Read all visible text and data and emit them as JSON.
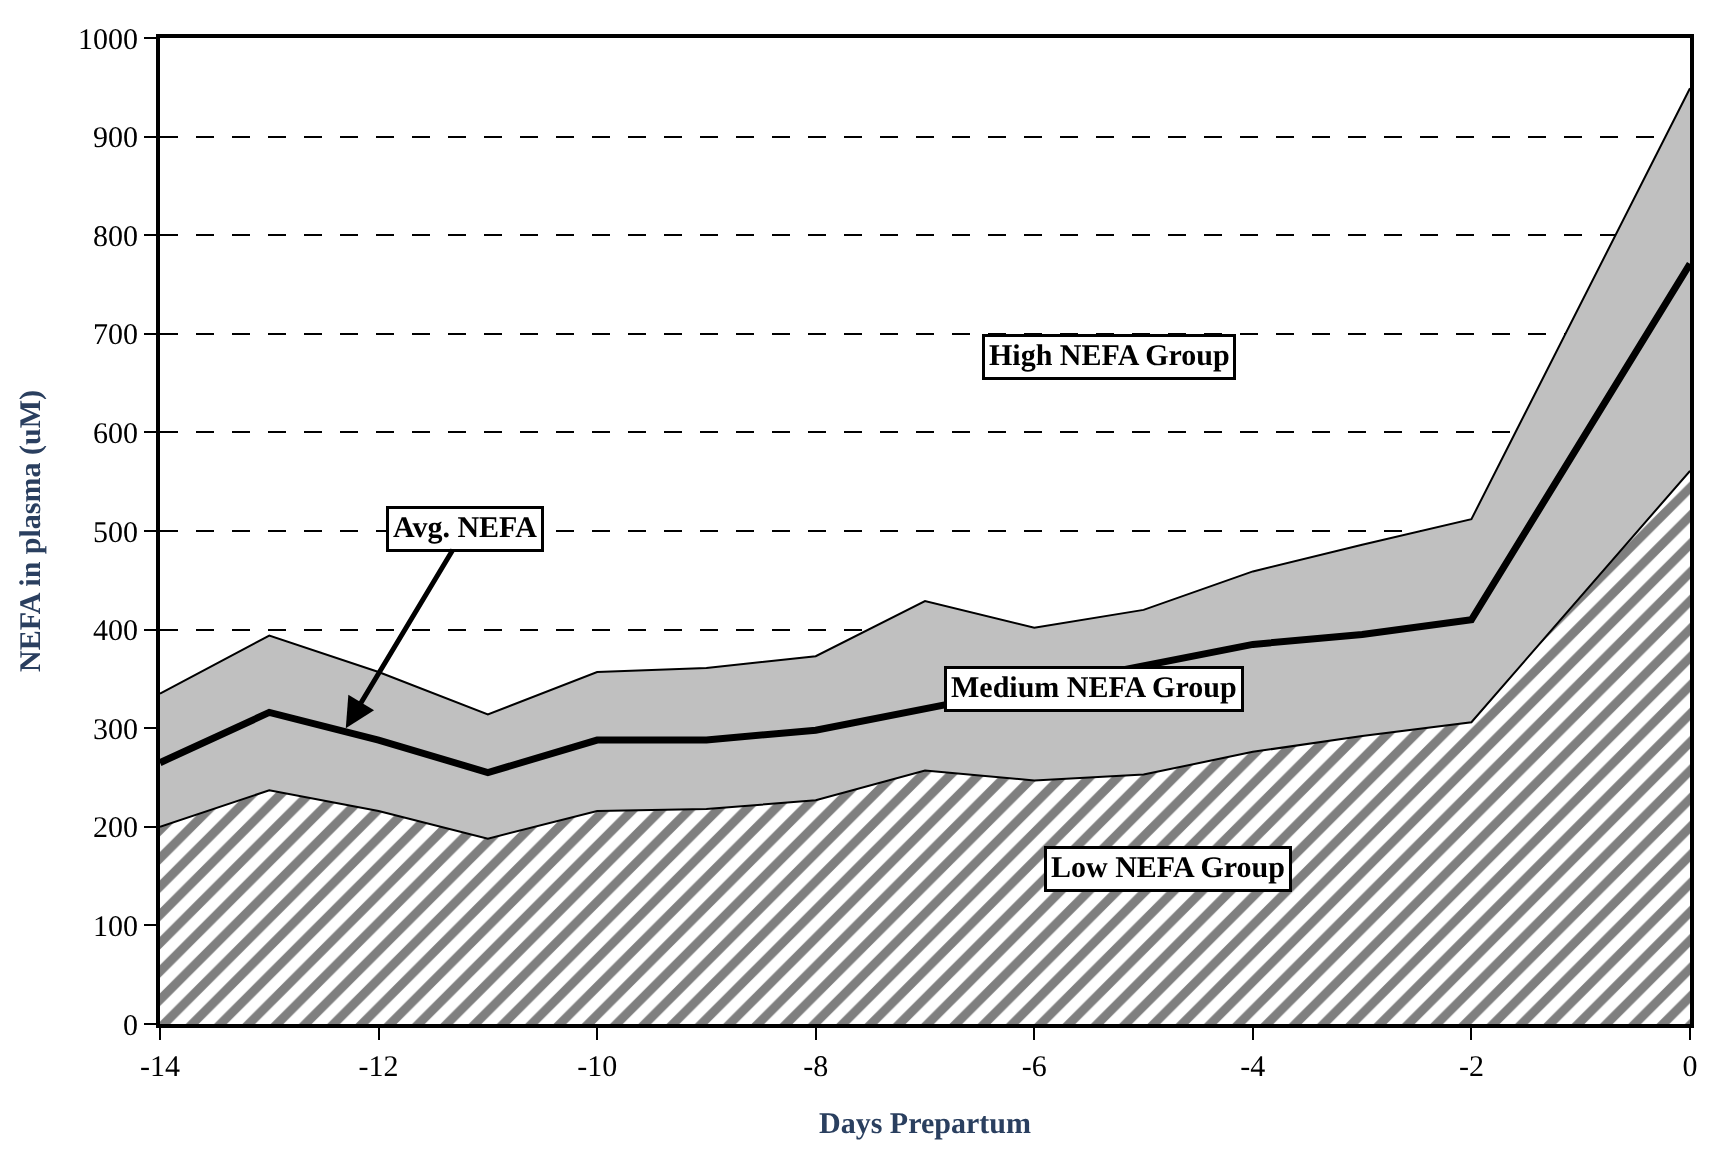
{
  "chart_data": {
    "type": "area",
    "xlabel": "Days Prepartum",
    "ylabel": "NEFA in plasma (uM)",
    "x": [
      -14,
      -13,
      -12,
      -11,
      -10,
      -9,
      -8,
      -7,
      -6,
      -5,
      -4,
      -3,
      -2,
      0
    ],
    "series": [
      {
        "color": "#000000",
        "values": [
          200,
          237,
          216,
          188,
          216,
          218,
          227,
          257,
          247,
          253,
          276,
          292,
          306,
          561
        ]
      },
      {
        "color": "#c0c0c0",
        "values": [
          335,
          394,
          357,
          314,
          357,
          361,
          373,
          429,
          402,
          420,
          459,
          486,
          512,
          949
        ]
      },
      {
        "type": "line",
        "color": "#000000",
        "values": [
          265,
          316,
          288,
          255,
          288,
          288,
          298,
          null,
          null,
          null,
          385,
          395,
          410,
          771
        ]
      }
    ],
    "xlim": [
      -14,
      0
    ],
    "xticks": [
      -14,
      -12,
      -10,
      -8,
      -6,
      -4,
      -2,
      0
    ],
    "ylim": [
      0,
      1000
    ],
    "yticks": [
      0,
      100,
      200,
      300,
      400,
      500,
      600,
      700,
      800,
      900,
      1000
    ],
    "grid": "y",
    "line_style": "solid",
    "annotations": [
      "High NEFA Group",
      "Medium NEFA Group",
      "Low NEFA Group",
      {
        "text": "Avg. NEFA",
        "x": -12.3,
        "y": 300
      }
    ]
  }
}
